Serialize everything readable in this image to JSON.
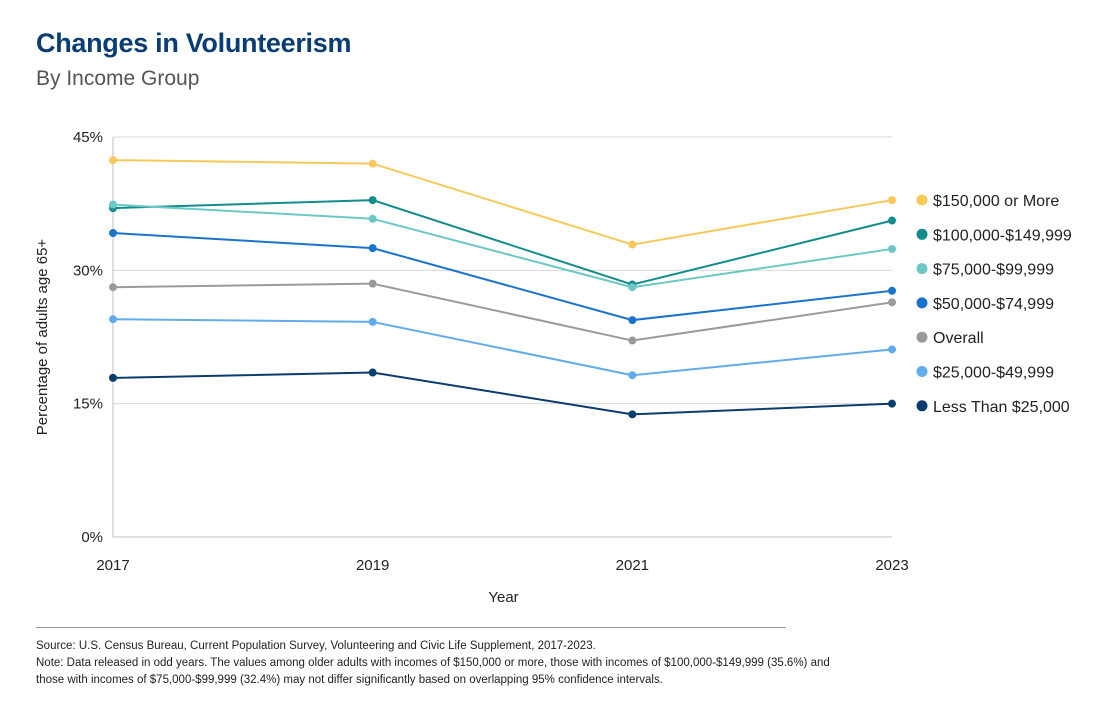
{
  "header": {
    "title": "Changes in Volunteerism",
    "subtitle": "By Income Group"
  },
  "chart_data": {
    "type": "line",
    "title": "Changes in Volunteerism",
    "subtitle": "By Income Group",
    "xlabel": "Year",
    "ylabel": "Percentage of adults age 65+",
    "x": [
      "2017",
      "2019",
      "2021",
      "2023"
    ],
    "ylim": [
      0,
      45
    ],
    "yticks": [
      0,
      15,
      30,
      45
    ],
    "ytick_labels": [
      "0%",
      "15%",
      "30%",
      "45%"
    ],
    "grid": "horizontal",
    "legend_position": "right",
    "series": [
      {
        "name": "$150,000 or More",
        "color": "#f7c95b",
        "values": [
          42.4,
          42.0,
          32.9,
          37.9
        ]
      },
      {
        "name": "$100,000-$149,999",
        "color": "#128c8c",
        "values": [
          37.0,
          37.9,
          28.4,
          35.6
        ]
      },
      {
        "name": "$75,000-$99,999",
        "color": "#6cc8c4",
        "values": [
          37.4,
          35.8,
          28.1,
          32.4
        ]
      },
      {
        "name": "$50,000-$74,999",
        "color": "#1a74cc",
        "values": [
          34.2,
          32.5,
          24.4,
          27.7
        ]
      },
      {
        "name": "Overall",
        "color": "#9a9a9a",
        "values": [
          28.1,
          28.5,
          22.1,
          26.4
        ]
      },
      {
        "name": "$25,000-$49,999",
        "color": "#62acec",
        "values": [
          24.5,
          24.2,
          18.2,
          21.1
        ]
      },
      {
        "name": "Less Than $25,000",
        "color": "#0a3d6e",
        "values": [
          17.9,
          18.5,
          13.8,
          15.0
        ]
      }
    ]
  },
  "footer": {
    "source": "Source: U.S. Census Bureau, Current Population Survey, Volunteering and Civic Life Supplement, 2017-2023.",
    "note": "Note: Data released in odd years. The values among older adults with incomes of $150,000 or more, those with incomes of $100,000-$149,999 (35.6%) and those with incomes of $75,000-$99,999 (32.4%) may not differ significantly based on overlapping 95% confidence intervals."
  }
}
